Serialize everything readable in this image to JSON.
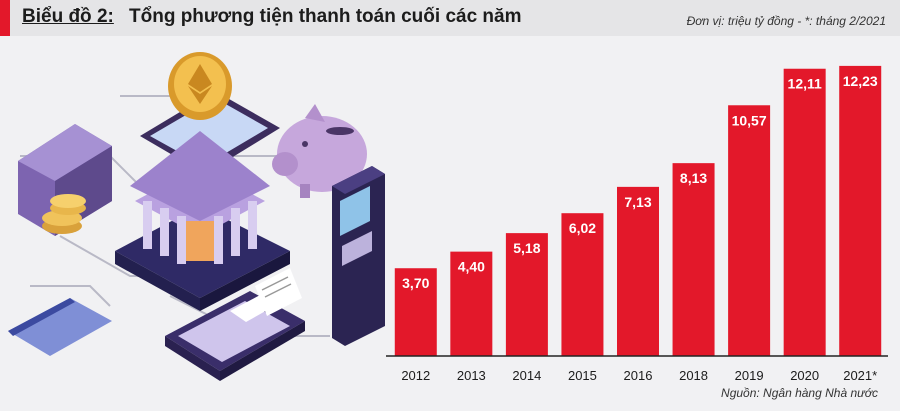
{
  "header": {
    "label": "Biểu đồ 2:",
    "title": "Tổng phương tiện thanh toán cuối các năm",
    "unit_note": "Đơn vị: triệu tỷ đồng - *: tháng 2/2021"
  },
  "footer": {
    "source": "Nguồn: Ngân hàng Nhà nước"
  },
  "colors": {
    "bar": "#e3182a",
    "bar_label": "#ffffff",
    "axis": "#222222",
    "accent": "#e3182a"
  },
  "illustration": {
    "icons": [
      "wallet-icon",
      "coin-stack-icon",
      "gold-coin-icon",
      "smartphone-icon",
      "bank-building-icon",
      "piggy-bank-icon",
      "atm-machine-icon",
      "credit-card-icon",
      "payment-terminal-icon",
      "receipt-icon"
    ]
  },
  "chart_data": {
    "type": "bar",
    "title": "Tổng phương tiện thanh toán cuối các năm",
    "categories": [
      "2012",
      "2013",
      "2014",
      "2015",
      "2016",
      "2018",
      "2019",
      "2020",
      "2021*"
    ],
    "values": [
      3.7,
      4.4,
      5.18,
      6.02,
      7.13,
      8.13,
      10.57,
      12.11,
      12.23
    ],
    "value_labels": [
      "3,70",
      "4,40",
      "5,18",
      "6,02",
      "7,13",
      "8,13",
      "10,57",
      "12,11",
      "12,23"
    ],
    "ylim": [
      0,
      12.9
    ],
    "grid": false,
    "legend": "none"
  }
}
